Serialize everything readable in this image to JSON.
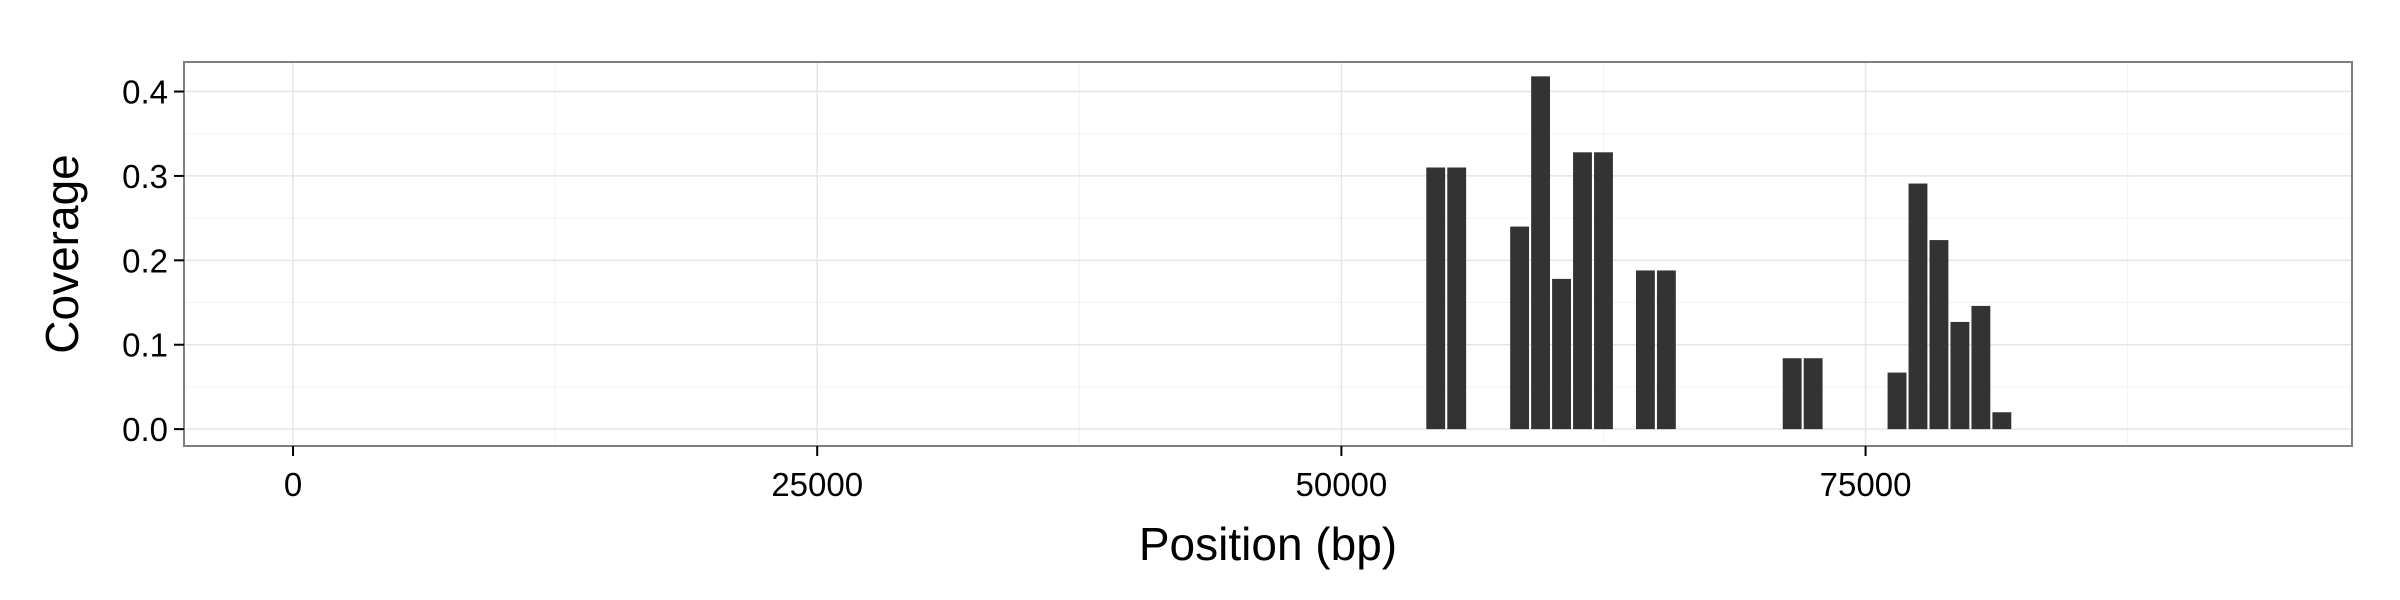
{
  "chart_data": {
    "type": "bar",
    "title": "",
    "xlabel": "Position (bp)",
    "ylabel": "Coverage",
    "xlim": [
      -5200,
      98200
    ],
    "ylim": [
      -0.02,
      0.435
    ],
    "x_ticks": [
      0,
      25000,
      50000,
      75000
    ],
    "x_tick_labels": [
      "0",
      "25000",
      "50000",
      "75000"
    ],
    "y_ticks": [
      0.0,
      0.1,
      0.2,
      0.3,
      0.4
    ],
    "y_tick_labels": [
      "0.0",
      "0.1",
      "0.2",
      "0.3",
      "0.4"
    ],
    "bin_width": 1000,
    "x": [
      54500,
      55500,
      58500,
      59500,
      60500,
      61500,
      62500,
      64500,
      65500,
      71500,
      72500,
      76500,
      77500,
      78500,
      79500,
      80500,
      81500
    ],
    "values": [
      0.31,
      0.31,
      0.24,
      0.418,
      0.178,
      0.328,
      0.328,
      0.188,
      0.188,
      0.084,
      0.084,
      0.067,
      0.291,
      0.224,
      0.127,
      0.146,
      0.02
    ],
    "bar_color": "#333333",
    "grid": true,
    "theme": "black-and-white"
  }
}
